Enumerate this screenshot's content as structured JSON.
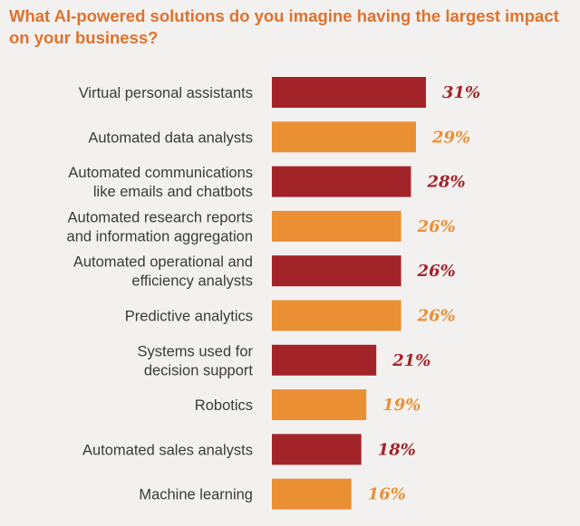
{
  "chart_data": {
    "type": "bar",
    "orientation": "horizontal",
    "title": "What AI-powered solutions do you imagine having the largest impact on your business?",
    "categories": [
      [
        "Virtual personal assistants"
      ],
      [
        "Automated data analysts"
      ],
      [
        "Automated communications",
        "like emails and chatbots"
      ],
      [
        "Automated research reports",
        "and information aggregation"
      ],
      [
        "Automated operational and",
        "efficiency analysts"
      ],
      [
        "Predictive analytics"
      ],
      [
        "Systems used for",
        "decision support"
      ],
      [
        "Robotics"
      ],
      [
        "Automated sales analysts"
      ],
      [
        "Machine learning"
      ]
    ],
    "values": [
      31,
      29,
      28,
      26,
      26,
      26,
      21,
      19,
      18,
      16
    ],
    "value_labels": [
      "31%",
      "29%",
      "28%",
      "26%",
      "26%",
      "26%",
      "21%",
      "19%",
      "18%",
      "16%"
    ],
    "colors": [
      "#a32428",
      "#ea8f34",
      "#a32428",
      "#ea8f34",
      "#a32428",
      "#ea8f34",
      "#a32428",
      "#ea8f34",
      "#a32428",
      "#ea8f34"
    ],
    "xlim": [
      0,
      100
    ],
    "grid": false,
    "legend": "none"
  }
}
